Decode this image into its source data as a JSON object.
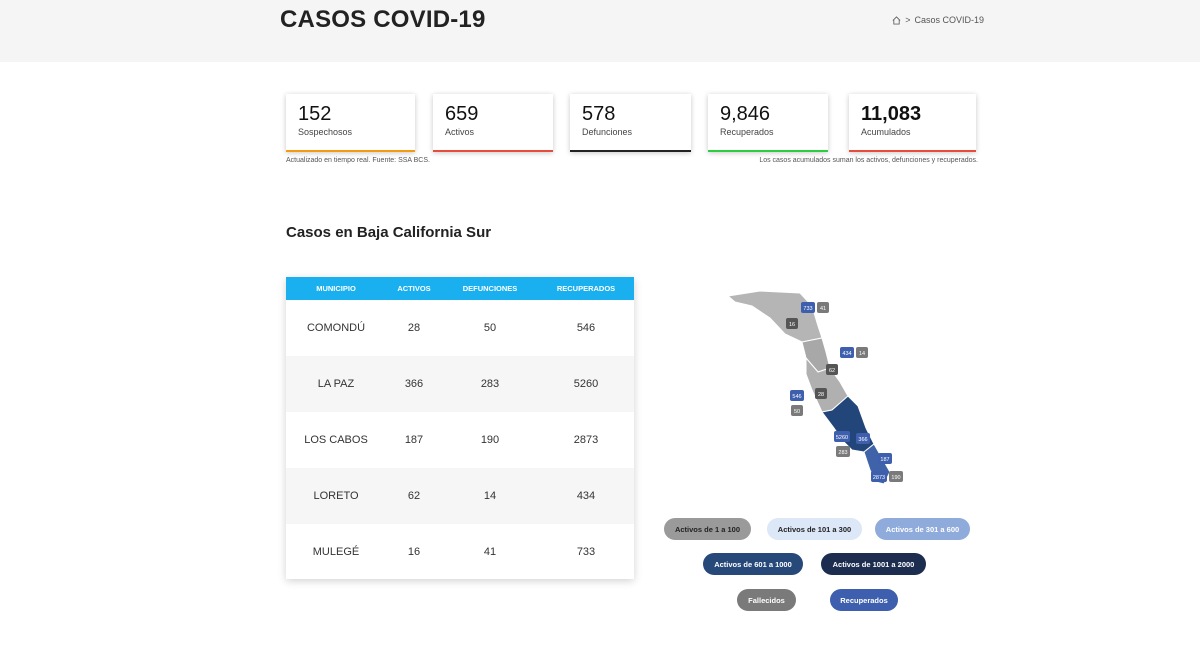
{
  "header": {
    "title": "CASOS COVID-19",
    "breadcrumb": "Casos COVID-19"
  },
  "stats": [
    {
      "value": "152",
      "label": "Sospechosos",
      "color": "#f39c12"
    },
    {
      "value": "659",
      "label": "Activos",
      "color": "#e74c3c"
    },
    {
      "value": "578",
      "label": "Defunciones",
      "color": "#222222"
    },
    {
      "value": "9,846",
      "label": "Recuperados",
      "color": "#2ecc40"
    },
    {
      "value": "11,083",
      "label": "Acumulados",
      "color": "#e74c3c"
    }
  ],
  "notes": {
    "left": "Actualizado en tiempo real. Fuente: SSA BCS.",
    "right": "Los casos acumulados suman los activos, defunciones y recuperados."
  },
  "section_title": "Casos en Baja California Sur",
  "table": {
    "headers": [
      "MUNICIPIO",
      "ACTIVOS",
      "DEFUNCIONES",
      "RECUPERADOS"
    ],
    "rows": [
      [
        "COMONDÚ",
        "28",
        "50",
        "546"
      ],
      [
        "LA PAZ",
        "366",
        "283",
        "5260"
      ],
      [
        "LOS CABOS",
        "187",
        "190",
        "2873"
      ],
      [
        "LORETO",
        "62",
        "14",
        "434"
      ],
      [
        "MULEGÉ",
        "16",
        "41",
        "733"
      ]
    ]
  },
  "map": {
    "labels": [
      "733",
      "41",
      "16",
      "434",
      "14",
      "62",
      "28",
      "546",
      "50",
      "5260",
      "366",
      "283",
      "187",
      "2873",
      "190"
    ]
  },
  "legend": [
    {
      "label": "Activos de 1 a 100",
      "bg": "#9a9a9a",
      "fg": "#222222"
    },
    {
      "label": "Activos de 101 a 300",
      "bg": "#dce8f7",
      "fg": "#222222"
    },
    {
      "label": "Activos de 301 a 600",
      "bg": "#8fabdb",
      "fg": "#ffffff"
    },
    {
      "label": "Activos de 601 a 1000",
      "bg": "#27497a",
      "fg": "#ffffff"
    },
    {
      "label": "Activos de 1001 a 2000",
      "bg": "#1c2d50",
      "fg": "#ffffff"
    },
    {
      "label": "Fallecidos",
      "bg": "#7a7a7a",
      "fg": "#ffffff"
    },
    {
      "label": "Recuperados",
      "bg": "#3d5fae",
      "fg": "#ffffff"
    }
  ]
}
